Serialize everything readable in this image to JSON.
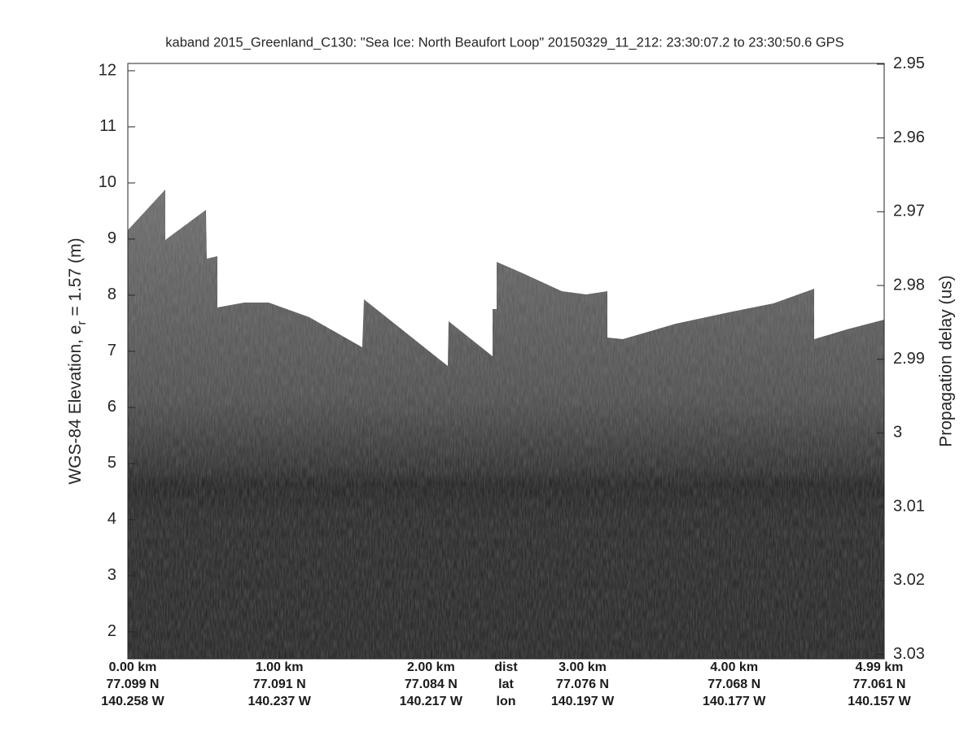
{
  "chart_data": {
    "type": "echogram",
    "title": "kaband 2015_Greenland_C130: \"Sea Ice: North Beaufort Loop\"  20150329_11_212: 23:30:07.2 to 23:30:50.6 GPS",
    "ylabel": [
      "WGS-84 Elevation, e",
      "r",
      " = 1.57 (m)"
    ],
    "y2label": "Propagation delay (us)",
    "ylim": [
      1.52,
      12.13
    ],
    "yticks": [
      2,
      3,
      4,
      5,
      6,
      7,
      8,
      9,
      10,
      11,
      12
    ],
    "y2lim": [
      3.0306,
      2.9499
    ],
    "y2ticks": [
      2.95,
      2.96,
      2.97,
      2.98,
      2.99,
      3,
      3.01,
      3.02,
      3.03
    ],
    "xlim": [
      0,
      4.99
    ],
    "xticks": [
      0,
      1,
      2,
      3,
      4,
      4.99
    ],
    "x_label_rows": [
      [
        "0.00 km",
        "1.00 km",
        "2.00 km",
        "3.00 km",
        "4.00 km",
        "4.99 km"
      ],
      [
        "77.099 N",
        "77.091 N",
        "77.084 N",
        "77.076 N",
        "77.068 N",
        "77.061 N"
      ],
      [
        "140.258 W",
        "140.237 W",
        "140.217 W",
        "140.197 W",
        "140.177 W",
        "140.157 W"
      ]
    ],
    "x_row_names": [
      "dist",
      "lat",
      "lon"
    ]
  }
}
